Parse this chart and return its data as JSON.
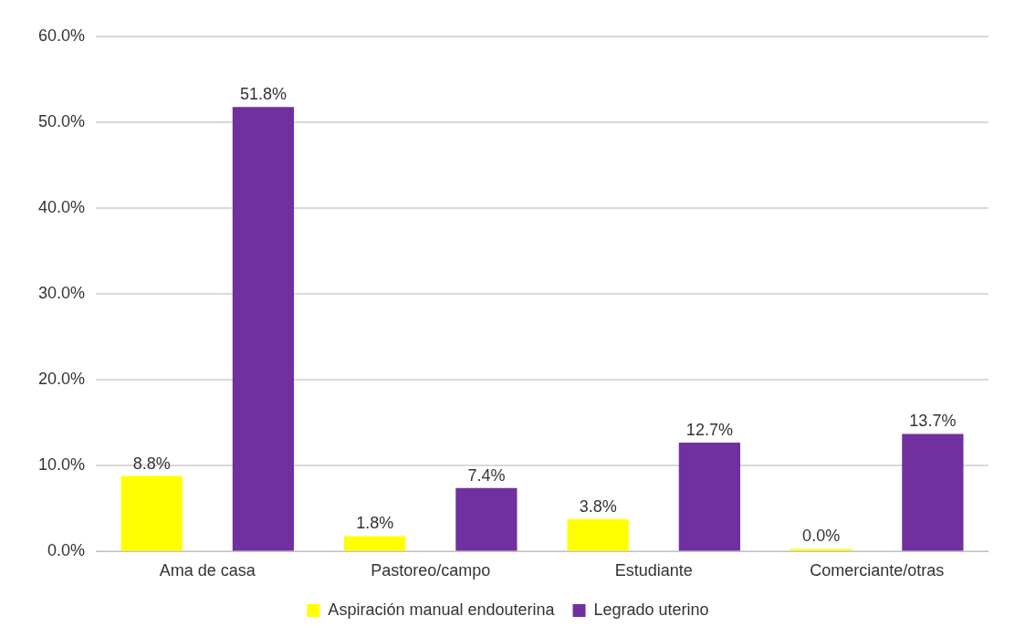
{
  "chart_data": {
    "type": "bar",
    "categories": [
      "Ama de casa",
      "Pastoreo/campo",
      "Estudiante",
      "Comerciante/otras"
    ],
    "series": [
      {
        "name": "Aspiración manual endouterina",
        "color": "#ffff00",
        "values": [
          8.8,
          1.8,
          3.8,
          0.0
        ],
        "value_labels": [
          "8.8%",
          "1.8%",
          "3.8%",
          "0.0%"
        ]
      },
      {
        "name": "Legrado uterino",
        "color": "#7030a0",
        "values": [
          51.8,
          7.4,
          12.7,
          13.7
        ],
        "value_labels": [
          "51.8%",
          "7.4%",
          "12.7%",
          "13.7%"
        ]
      }
    ],
    "ylim": [
      0,
      60
    ],
    "yticks": [
      {
        "value": 0,
        "label": "0.0%"
      },
      {
        "value": 10,
        "label": "10.0%"
      },
      {
        "value": 20,
        "label": "20.0%"
      },
      {
        "value": 30,
        "label": "30.0%"
      },
      {
        "value": 40,
        "label": "40.0%"
      },
      {
        "value": 50,
        "label": "50.0%"
      },
      {
        "value": 60,
        "label": "60.0%"
      }
    ],
    "grid": "y",
    "legend": "bottom"
  }
}
